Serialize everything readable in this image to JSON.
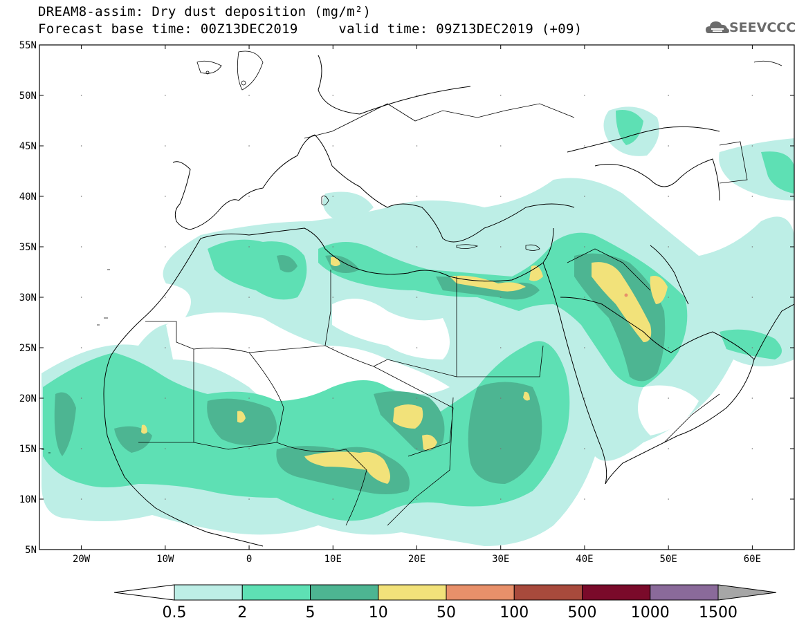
{
  "title_line1": "DREAM8-assim: Dry dust deposition (mg/m²)",
  "title_line2": "Forecast base time: 00Z13DEC2019     valid time: 09Z13DEC2019 (+09)",
  "logo_text": "SEEVCCC",
  "map": {
    "lon_range": [
      -25,
      65
    ],
    "lat_range": [
      5,
      55
    ],
    "lat_ticks": [
      "55N",
      "50N",
      "45N",
      "40N",
      "35N",
      "30N",
      "25N",
      "20N",
      "15N",
      "10N",
      "5N"
    ],
    "lon_ticks": [
      "20W",
      "10W",
      "0",
      "10E",
      "20E",
      "30E",
      "40E",
      "50E",
      "60E"
    ],
    "lat_tick_values": [
      55,
      50,
      45,
      40,
      35,
      30,
      25,
      20,
      15,
      10,
      5
    ],
    "lon_tick_values": [
      -20,
      -10,
      0,
      10,
      20,
      30,
      40,
      50,
      60
    ]
  },
  "colorbar": {
    "labels": [
      "0.5",
      "2",
      "5",
      "10",
      "50",
      "100",
      "500",
      "1000",
      "1500"
    ],
    "colors": [
      "#bdeee6",
      "#5ee0b4",
      "#4db592",
      "#f2e27a",
      "#e8906a",
      "#a84a3c",
      "#7a0a2a",
      "#8a6a9a",
      "#a6a6a6"
    ]
  }
}
